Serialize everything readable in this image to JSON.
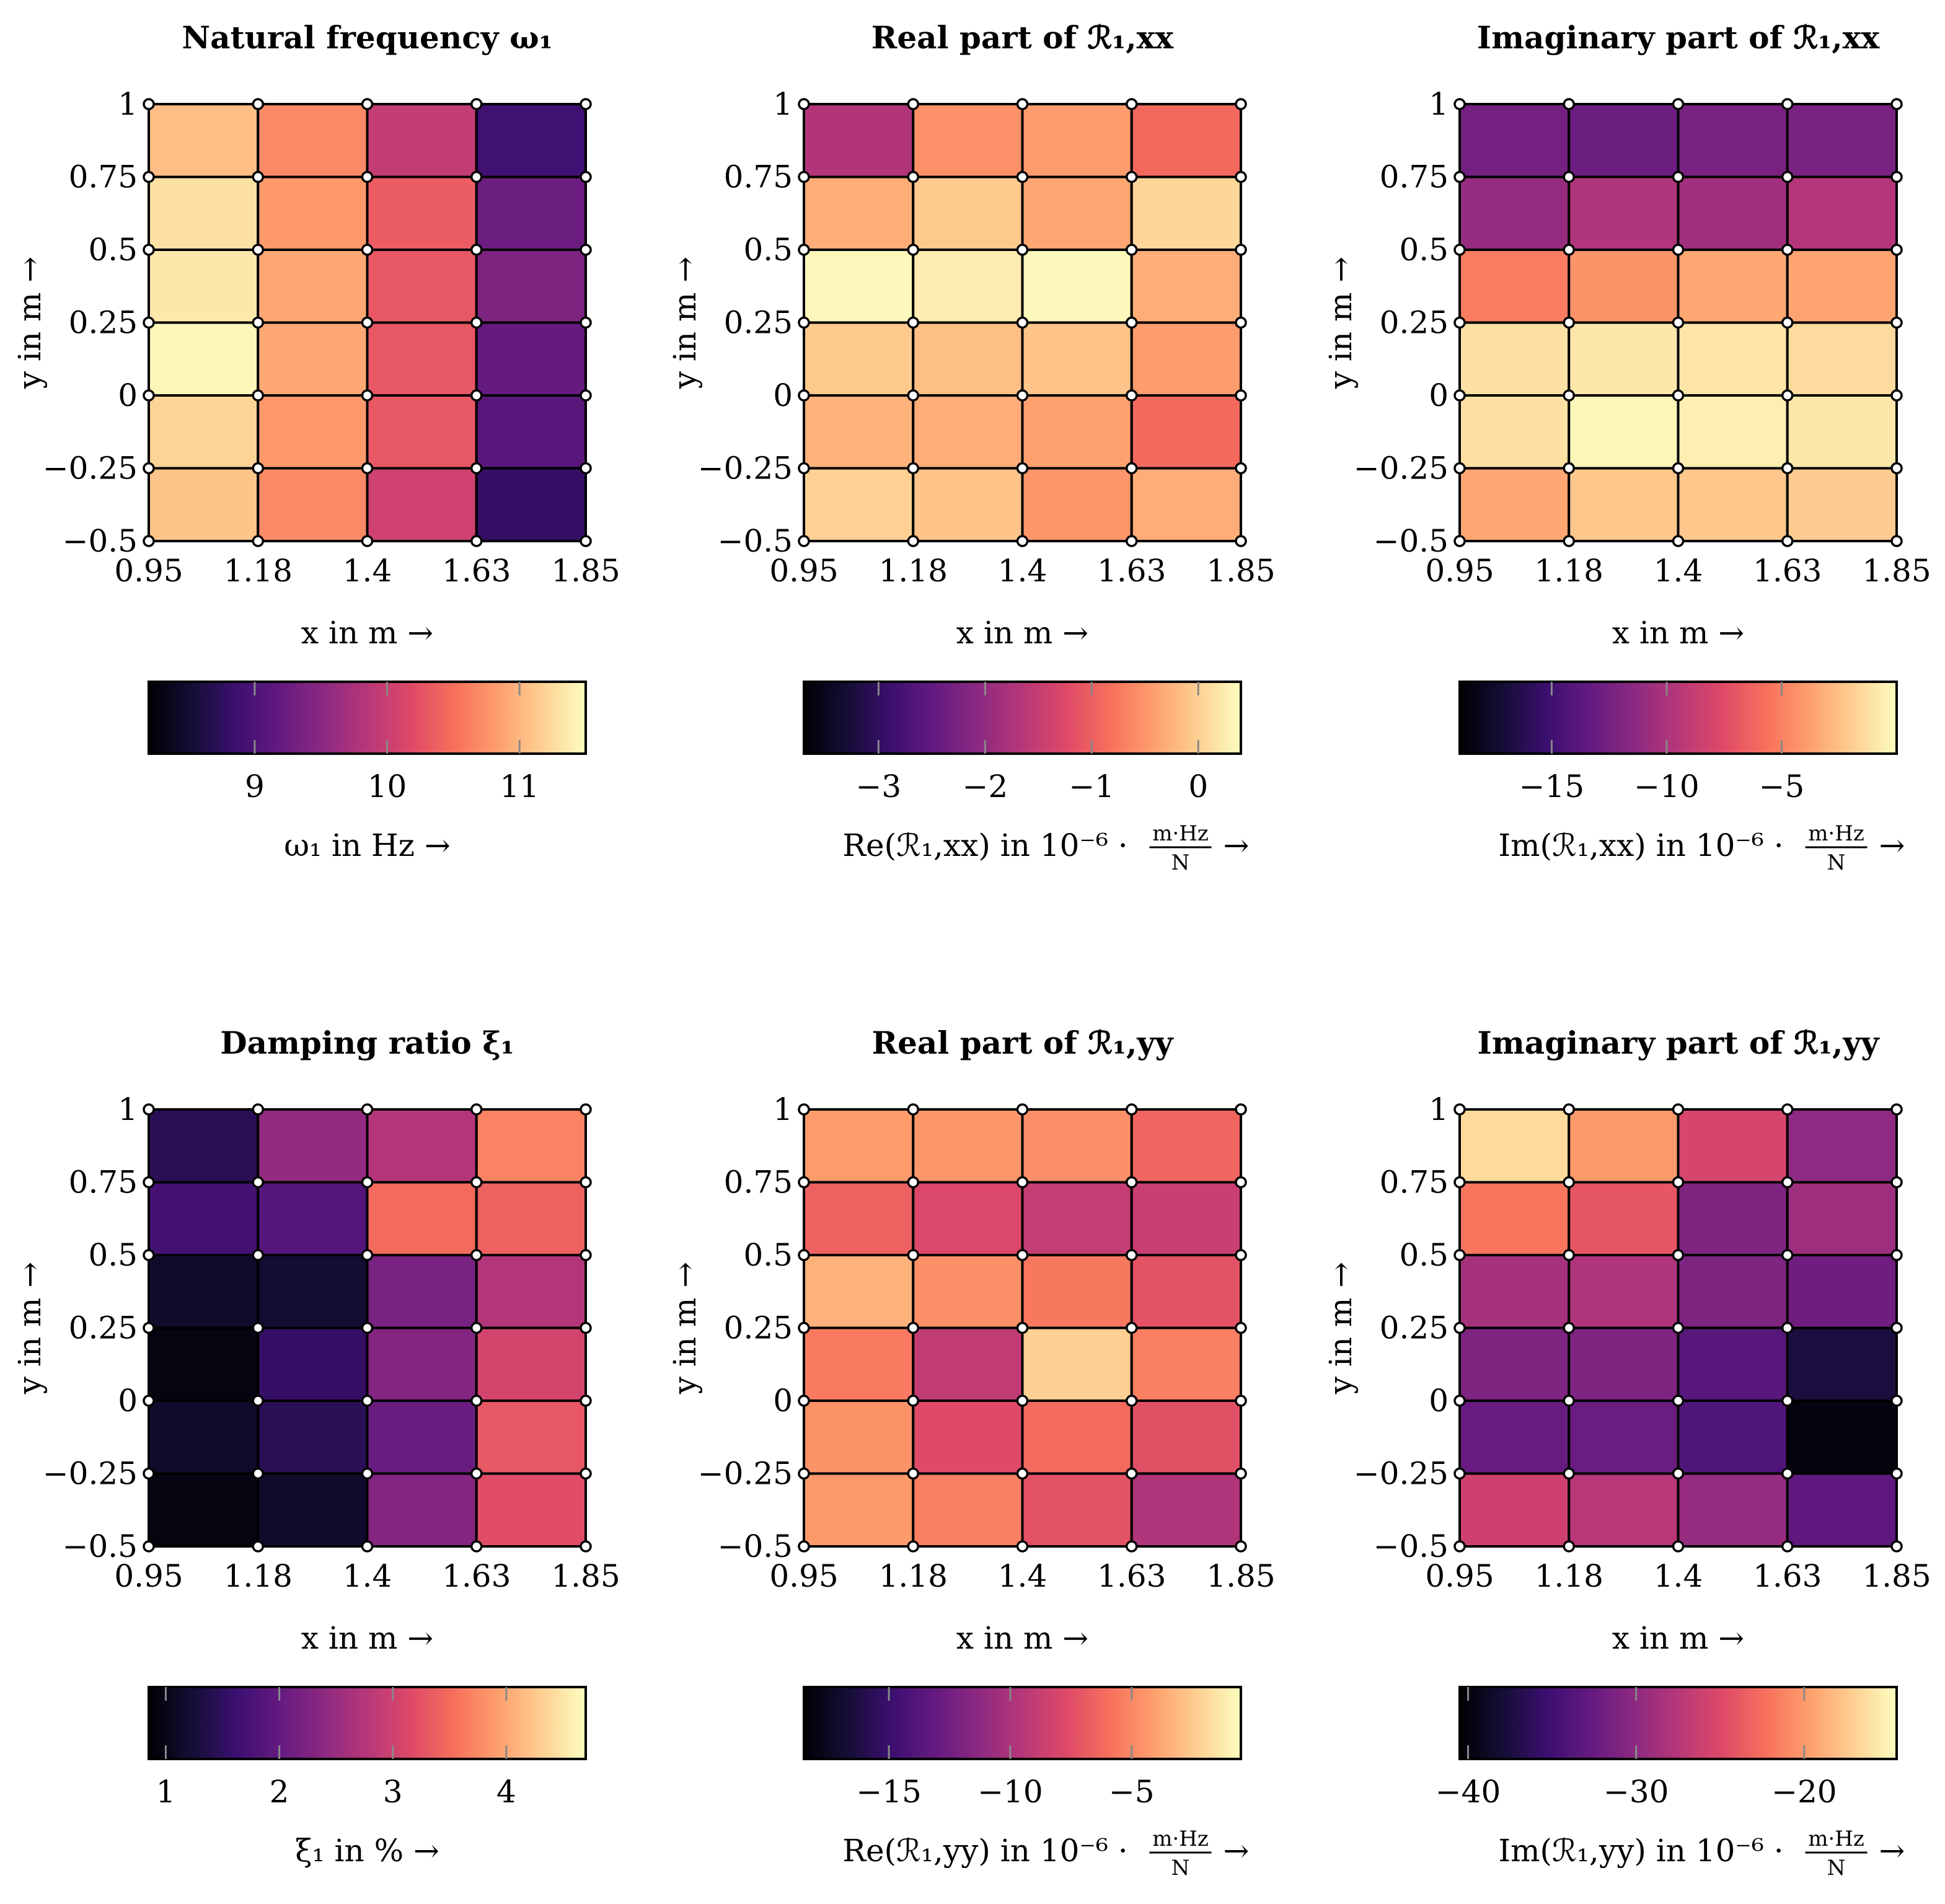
{
  "colormap": [
    "#000004",
    "#140e36",
    "#3b0f70",
    "#641a80",
    "#8c2981",
    "#b73779",
    "#de4968",
    "#f7705c",
    "#fe9f6d",
    "#fecf92",
    "#fcfdbf"
  ],
  "chart_data": [
    {
      "type": "heatmap",
      "title": "Natural frequency ω₁",
      "xlabel": "x in m →",
      "ylabel": "y in m →",
      "x_edges": [
        0.95,
        1.175,
        1.4,
        1.625,
        1.85
      ],
      "y_edges": [
        -0.5,
        -0.25,
        0,
        0.25,
        0.5,
        0.75,
        1
      ],
      "xticks": [
        "0.95",
        "1.18",
        "1.4",
        "1.63",
        "1.85"
      ],
      "yticks": [
        "−0.5",
        "−0.25",
        "0",
        "0.25",
        "0.5",
        "0.75",
        "1"
      ],
      "values": [
        [
          11.1,
          10.7,
          10.05,
          8.8
        ],
        [
          11.2,
          10.8,
          10.3,
          9.1
        ],
        [
          11.45,
          10.9,
          10.3,
          9.2
        ],
        [
          11.35,
          10.9,
          10.3,
          9.4
        ],
        [
          11.3,
          10.8,
          10.35,
          9.25
        ],
        [
          11.05,
          10.7,
          9.95,
          8.9
        ]
      ],
      "cbar": {
        "min": 8.2,
        "max": 11.5,
        "ticks": [
          9,
          10,
          11
        ],
        "tick_labels": [
          "9",
          "10",
          "11"
        ],
        "label": "ω₁ in Hz →"
      }
    },
    {
      "type": "heatmap",
      "title": "Real part of ℛ₁,xx",
      "xlabel": "x in m →",
      "ylabel": "y in m →",
      "x_edges": [
        0.95,
        1.175,
        1.4,
        1.625,
        1.85
      ],
      "y_edges": [
        -0.5,
        -0.25,
        0,
        0.25,
        0.5,
        0.75,
        1
      ],
      "xticks": [
        "0.95",
        "1.18",
        "1.4",
        "1.63",
        "1.85"
      ],
      "yticks": [
        "−0.5",
        "−0.25",
        "0",
        "0.25",
        "0.5",
        "0.75",
        "1"
      ],
      "values": [
        [
          0.0,
          -0.1,
          -0.5,
          -0.3
        ],
        [
          -0.25,
          -0.3,
          -0.4,
          -0.9
        ],
        [
          -0.05,
          -0.15,
          -0.1,
          -0.45
        ],
        [
          0.35,
          0.25,
          0.35,
          -0.3
        ],
        [
          -0.3,
          -0.05,
          -0.35,
          0.05
        ],
        [
          -1.7,
          -0.55,
          -0.45,
          -0.9
        ]
      ],
      "cbar": {
        "min": -3.7,
        "max": 0.4,
        "ticks": [
          -3,
          -2,
          -1,
          0
        ],
        "tick_labels": [
          "−3",
          "−2",
          "−1",
          "0"
        ],
        "label": "Re(ℛ₁,xx) in 10⁻⁶ ·",
        "unit_num": "m·Hz",
        "unit_den": "N"
      }
    },
    {
      "type": "heatmap",
      "title": "Imaginary part of ℛ₁,xx",
      "xlabel": "x in m →",
      "ylabel": "y in m →",
      "x_edges": [
        0.95,
        1.175,
        1.4,
        1.625,
        1.85
      ],
      "y_edges": [
        -0.5,
        -0.25,
        0,
        0.25,
        0.5,
        0.75,
        1
      ],
      "xticks": [
        "0.95",
        "1.18",
        "1.4",
        "1.63",
        "1.85"
      ],
      "yticks": [
        "−0.5",
        "−0.25",
        "0",
        "0.25",
        "0.5",
        "0.75",
        "1"
      ],
      "values": [
        [
          -3.5,
          -2.2,
          -2.2,
          -2.0
        ],
        [
          -1.2,
          -0.3,
          -0.6,
          -0.9
        ],
        [
          -1.2,
          -0.9,
          -1.0,
          -1.4
        ],
        [
          -5.2,
          -4.3,
          -3.5,
          -3.6
        ],
        [
          -11.0,
          -9.8,
          -10.5,
          -9.6
        ],
        [
          -12.6,
          -12.9,
          -12.3,
          -12.3
        ]
      ],
      "cbar": {
        "min": -19.0,
        "max": 0.0,
        "ticks": [
          -15,
          -10,
          -5
        ],
        "tick_labels": [
          "−15",
          "−10",
          "−5"
        ],
        "label": "Im(ℛ₁,xx) in 10⁻⁶ ·",
        "unit_num": "m·Hz",
        "unit_den": "N"
      }
    },
    {
      "type": "heatmap",
      "title": "Damping ratio ξ₁",
      "xlabel": "x in m →",
      "ylabel": "y in m →",
      "x_edges": [
        0.95,
        1.175,
        1.4,
        1.625,
        1.85
      ],
      "y_edges": [
        -0.5,
        -0.25,
        0,
        0.25,
        0.5,
        0.75,
        1
      ],
      "xticks": [
        "0.95",
        "1.18",
        "1.4",
        "1.63",
        "1.85"
      ],
      "yticks": [
        "−0.5",
        "−0.25",
        "0",
        "0.25",
        "0.5",
        "0.75",
        "1"
      ],
      "values": [
        [
          0.95,
          1.15,
          2.3,
          3.2
        ],
        [
          1.15,
          1.45,
          2.05,
          3.3
        ],
        [
          0.95,
          1.55,
          2.3,
          3.05
        ],
        [
          1.15,
          1.2,
          2.2,
          2.75
        ],
        [
          1.7,
          1.85,
          3.5,
          3.4
        ],
        [
          1.45,
          2.45,
          2.75,
          3.7
        ]
      ],
      "cbar": {
        "min": 0.85,
        "max": 4.7,
        "ticks": [
          1,
          2,
          3,
          4
        ],
        "tick_labels": [
          "1",
          "2",
          "3",
          "4"
        ],
        "label": "ξ₁ in % →"
      }
    },
    {
      "type": "heatmap",
      "title": "Real part of ℛ₁,yy",
      "xlabel": "x in m →",
      "ylabel": "y in m →",
      "x_edges": [
        0.95,
        1.175,
        1.4,
        1.625,
        1.85
      ],
      "y_edges": [
        -0.5,
        -0.25,
        0,
        0.25,
        0.5,
        0.75,
        1
      ],
      "xticks": [
        "0.95",
        "1.18",
        "1.4",
        "1.63",
        "1.85"
      ],
      "yticks": [
        "−0.5",
        "−0.25",
        "0",
        "0.25",
        "0.5",
        "0.75",
        "1"
      ],
      "values": [
        [
          -4.3,
          -5.3,
          -7.3,
          -9.8
        ],
        [
          -4.6,
          -7.6,
          -6.2,
          -7.4
        ],
        [
          -5.5,
          -9.0,
          -2.3,
          -5.3
        ],
        [
          -3.4,
          -4.7,
          -5.6,
          -7.3
        ],
        [
          -6.6,
          -7.8,
          -8.9,
          -8.7
        ],
        [
          -4.2,
          -4.4,
          -4.7,
          -6.4
        ]
      ],
      "cbar": {
        "min": -18.5,
        "max": -0.5,
        "ticks": [
          -15,
          -10,
          -5
        ],
        "tick_labels": [
          "−15",
          "−10",
          "−5"
        ],
        "label": "Re(ℛ₁,yy) in 10⁻⁶ ·",
        "unit_num": "m·Hz",
        "unit_den": "N"
      }
    },
    {
      "type": "heatmap",
      "title": "Imaginary part of ℛ₁,yy",
      "xlabel": "x in m →",
      "ylabel": "y in m →",
      "x_edges": [
        0.95,
        1.175,
        1.4,
        1.625,
        1.85
      ],
      "y_edges": [
        -0.5,
        -0.25,
        0,
        0.25,
        0.5,
        0.75,
        1
      ],
      "xticks": [
        "0.95",
        "1.18",
        "1.4",
        "1.63",
        "1.85"
      ],
      "yticks": [
        "−0.5",
        "−0.25",
        "0",
        "0.25",
        "0.5",
        "0.75",
        "1"
      ],
      "values": [
        [
          -26.0,
          -27.5,
          -29.5,
          -33.0
        ],
        [
          -32.5,
          -32.3,
          -34.0,
          -40.0
        ],
        [
          -31.0,
          -31.0,
          -33.5,
          -37.5
        ],
        [
          -28.5,
          -28.0,
          -31.0,
          -32.0
        ],
        [
          -22.0,
          -24.0,
          -31.0,
          -29.0
        ],
        [
          -16.5,
          -20.0,
          -25.5,
          -30.0
        ]
      ],
      "cbar": {
        "min": -40.5,
        "max": -14.5,
        "ticks": [
          -40,
          -30,
          -20
        ],
        "tick_labels": [
          "−40",
          "−30",
          "−20"
        ],
        "label": "Im(ℛ₁,yy) in 10⁻⁶ ·",
        "unit_num": "m·Hz",
        "unit_den": "N"
      }
    }
  ]
}
